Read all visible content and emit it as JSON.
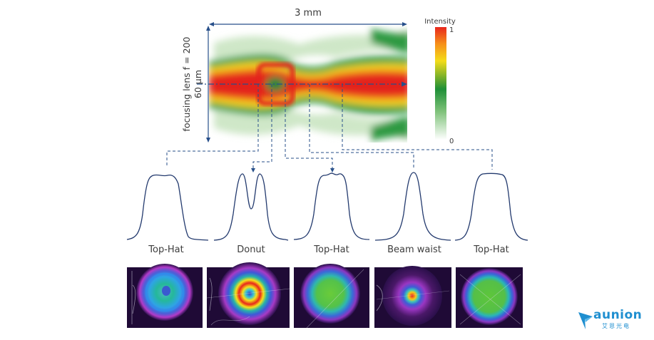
{
  "header": {
    "width_label": "3 mm",
    "side_label_line1": "focusing lens f = 200",
    "side_label_line2": "60 µm"
  },
  "colorbar": {
    "title": "Intensity",
    "max_label": "1",
    "min_label": "0",
    "colors": [
      "#ffffff",
      "#1e9a3a",
      "#f6d91a",
      "#ee2a1c"
    ]
  },
  "profiles": [
    {
      "label": "Top-Hat"
    },
    {
      "label": "Donut"
    },
    {
      "label": "Top-Hat"
    },
    {
      "label": "Beam waist"
    },
    {
      "label": "Top-Hat"
    }
  ],
  "beam_images": [
    {
      "kind": "top-hat ring"
    },
    {
      "kind": "donut rings"
    },
    {
      "kind": "top-hat"
    },
    {
      "kind": "focused spot"
    },
    {
      "kind": "top-hat"
    }
  ],
  "logo": {
    "name": "aunion",
    "subtitle": "艾恩光电",
    "accent": "#1f8fd0"
  }
}
